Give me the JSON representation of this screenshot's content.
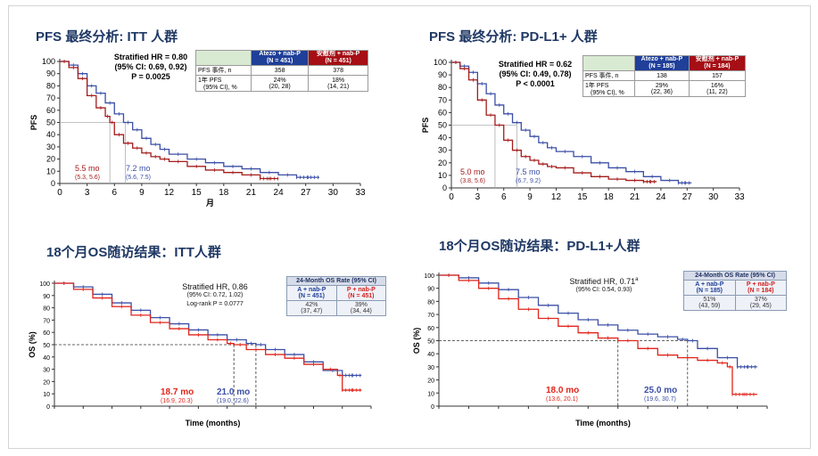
{
  "colors": {
    "blue": "#3b4fa6",
    "red": "#a51c1c",
    "red_bright": "#e1251b",
    "title": "#1f3864"
  },
  "panels": {
    "pfs_itt": {
      "title": "PFS 最终分析: ITT 人群",
      "stat": {
        "hr": "Stratified HR = 0.80",
        "ci": "(95% CI: 0.69, 0.92)",
        "p": "P = 0.0025"
      },
      "table": {
        "col_a": "Atezo + nab-P",
        "col_a_n": "(N = 451)",
        "col_p": "安慰剂 + nab-P",
        "col_p_n": "(N = 451)",
        "row1_label": "PFS 事件, n",
        "row1_a": "358",
        "row1_p": "378",
        "row2_label": "1年 PFS",
        "row2_label_b": "(95% CI), %",
        "row2_a": "24%",
        "row2_a_ci": "(20, 28)",
        "row2_p": "18%",
        "row2_p_ci": "(14, 21)"
      },
      "median_p": "5.5 mo",
      "median_p_ci": "(5.3, 5.6)",
      "median_a": "7.2 mo",
      "median_a_ci": "(5.6, 7.5)"
    },
    "pfs_pdl1": {
      "title": "PFS 最终分析: PD-L1+ 人群",
      "stat": {
        "hr": "Stratified HR = 0.62",
        "ci": "(95% CI: 0.49, 0.78)",
        "p": "P < 0.0001"
      },
      "table": {
        "col_a": "Atezo + nab-P",
        "col_a_n": "(N = 185)",
        "col_p": "安慰剂 + nab-P",
        "col_p_n": "(N = 184)",
        "row1_label": "PFS 事件, n",
        "row1_a": "138",
        "row1_p": "157",
        "row2_label": "1年 PFS",
        "row2_label_b": "(95% CI), %",
        "row2_a": "29%",
        "row2_a_ci": "(22, 36)",
        "row2_p": "16%",
        "row2_p_ci": "(11, 22)"
      },
      "median_p": "5.0 mo",
      "median_p_ci": "(3.8, 5.6)",
      "median_a": "7.5 mo",
      "median_a_ci": "(6.7, 9.2)"
    },
    "os_itt": {
      "title": "18个月OS随访结果：ITT人群",
      "stat": {
        "hr": "Stratified HR, 0.86",
        "ci": "(95% CI: 0.72, 1.02)",
        "p": "Log-rank P = 0.0777"
      },
      "table": {
        "caption": "24-Month OS Rate (95% CI)",
        "col_a": "A + nab-P",
        "col_a_n": "(N = 451)",
        "col_p": "P + nab-P",
        "col_p_n": "(N = 451)",
        "a": "42%",
        "a_ci": "(37, 47)",
        "p": "39%",
        "p_ci": "(34, 44)"
      },
      "median_p": "18.7 mo",
      "median_p_ci": "(16.9, 20.3)",
      "median_a": "21.0 mo",
      "median_a_ci": "(19.0, 22.6)"
    },
    "os_pdl1": {
      "title": "18个月OS随访结果：PD-L1+人群",
      "stat": {
        "hr": "Stratified HR, 0.71",
        "hr_sup": "a",
        "ci": "(95% CI: 0.54, 0.93)"
      },
      "table": {
        "caption": "24-Month OS Rate (95% CI)",
        "col_a": "A + nab-P",
        "col_a_n": "(N = 185)",
        "col_p": "P + nab-P",
        "col_p_n": "(N = 184)",
        "a": "51%",
        "a_ci": "(43, 59)",
        "p": "37%",
        "p_ci": "(29, 45)"
      },
      "median_p": "18.0 mo",
      "median_p_ci": "(13.6, 20.1)",
      "median_a": "25.0 mo",
      "median_a_ci": "(19.6, 30.7)"
    }
  },
  "chart_data": [
    {
      "id": "pfs_itt",
      "type": "line",
      "title": "PFS 最终分析: ITT 人群",
      "xlabel": "月",
      "ylabel": "PFS",
      "xlim": [
        0,
        33
      ],
      "ylim": [
        0,
        100
      ],
      "xticks": [
        0,
        3,
        6,
        9,
        12,
        15,
        18,
        21,
        24,
        27,
        30,
        33
      ],
      "yticks": [
        0,
        10,
        20,
        30,
        40,
        50,
        60,
        70,
        80,
        90,
        100
      ],
      "medians": [
        5.5,
        7.2
      ],
      "series": [
        {
          "name": "Atezo + nab-P",
          "color": "#3b4fa6",
          "x": [
            0,
            1,
            2,
            3,
            4,
            5,
            6,
            7,
            8,
            9,
            10,
            11,
            12,
            14,
            16,
            18,
            20,
            22,
            24,
            26,
            28.5
          ],
          "y": [
            100,
            97,
            90,
            80,
            74,
            66,
            57,
            50,
            44,
            37,
            32,
            28,
            24,
            20,
            17,
            14,
            12,
            9,
            7,
            5,
            5
          ]
        },
        {
          "name": "安慰剂 + nab-P",
          "color": "#a51c1c",
          "x": [
            0,
            1,
            2,
            3,
            4,
            5,
            5.5,
            6,
            7,
            8,
            9,
            10,
            11,
            12,
            14,
            16,
            18,
            20,
            22,
            24
          ],
          "y": [
            100,
            95,
            86,
            72,
            62,
            55,
            50,
            40,
            33,
            29,
            25,
            22,
            20,
            18,
            14,
            11,
            9,
            7,
            4,
            4
          ]
        }
      ]
    },
    {
      "id": "pfs_pdl1",
      "type": "line",
      "title": "PFS 最终分析: PD-L1+ 人群",
      "xlabel": "",
      "ylabel": "PFS",
      "xlim": [
        0,
        33
      ],
      "ylim": [
        0,
        100
      ],
      "xticks": [
        0,
        3,
        6,
        9,
        12,
        15,
        18,
        21,
        24,
        27,
        30,
        33
      ],
      "yticks": [
        0,
        10,
        20,
        30,
        40,
        50,
        60,
        70,
        80,
        90,
        100
      ],
      "medians": [
        5.0,
        7.5
      ],
      "series": [
        {
          "name": "Atezo + nab-P",
          "color": "#3b4fa6",
          "x": [
            0,
            1,
            2,
            3,
            4,
            5,
            6,
            7,
            8,
            9,
            10,
            11,
            12,
            14,
            16,
            18,
            20,
            22,
            24,
            26,
            27.5
          ],
          "y": [
            100,
            97,
            92,
            83,
            75,
            66,
            59,
            52,
            46,
            41,
            36,
            32,
            29,
            25,
            20,
            16,
            13,
            9,
            6,
            4,
            4
          ]
        },
        {
          "name": "安慰剂 + nab-P",
          "color": "#a51c1c",
          "x": [
            0,
            1,
            2,
            3,
            4,
            5,
            6,
            7,
            8,
            9,
            10,
            11,
            12,
            14,
            16,
            18,
            20,
            22,
            23.5
          ],
          "y": [
            100,
            95,
            86,
            70,
            58,
            50,
            38,
            30,
            25,
            22,
            19,
            17,
            16,
            12,
            9,
            7,
            6,
            5,
            5
          ]
        }
      ]
    },
    {
      "id": "os_itt",
      "type": "line",
      "title": "18个月OS随访结果：ITT人群",
      "xlabel": "Time (months)",
      "ylabel": "OS (%)",
      "xlim": [
        0,
        33
      ],
      "ylim": [
        0,
        100
      ],
      "yticks": [
        0,
        10,
        20,
        30,
        40,
        50,
        60,
        70,
        80,
        90,
        100
      ],
      "medians": [
        18.7,
        21.0
      ],
      "ref_y": 50,
      "series": [
        {
          "name": "A + nab-P",
          "color": "#3b4fa6",
          "x": [
            0,
            2,
            4,
            6,
            8,
            10,
            12,
            14,
            16,
            18,
            20,
            21,
            22,
            24,
            26,
            28,
            30,
            32
          ],
          "y": [
            100,
            97,
            91,
            84,
            78,
            72,
            67,
            62,
            58,
            54,
            51,
            50,
            46,
            42,
            36,
            29,
            25,
            25
          ]
        },
        {
          "name": "P + nab-P",
          "color": "#e1251b",
          "x": [
            0,
            2,
            4,
            6,
            8,
            10,
            12,
            14,
            16,
            18,
            18.7,
            20,
            22,
            24,
            26,
            28,
            29.5,
            30,
            32
          ],
          "y": [
            100,
            95,
            88,
            81,
            74,
            68,
            63,
            58,
            54,
            51,
            50,
            46,
            42,
            39,
            34,
            30,
            25,
            13,
            13
          ]
        }
      ]
    },
    {
      "id": "os_pdl1",
      "type": "line",
      "title": "18个月OS随访结果：PD-L1+人群",
      "xlabel": "Time (months)",
      "ylabel": "OS (%)",
      "xlim": [
        0,
        33
      ],
      "ylim": [
        0,
        100
      ],
      "yticks": [
        0,
        10,
        20,
        30,
        40,
        50,
        60,
        70,
        80,
        90,
        100
      ],
      "medians": [
        18.0,
        25.0
      ],
      "ref_y": 50,
      "series": [
        {
          "name": "A + nab-P",
          "color": "#3b4fa6",
          "x": [
            0,
            2,
            4,
            6,
            8,
            10,
            12,
            14,
            16,
            18,
            20,
            22,
            24,
            25,
            26,
            28,
            30,
            32
          ],
          "y": [
            100,
            98,
            94,
            89,
            83,
            77,
            71,
            66,
            62,
            58,
            55,
            53,
            51,
            50,
            44,
            37,
            30,
            30
          ]
        },
        {
          "name": "P + nab-P",
          "color": "#e1251b",
          "x": [
            0,
            2,
            4,
            6,
            8,
            10,
            12,
            14,
            16,
            18,
            20,
            22,
            24,
            26,
            28,
            29,
            29.5,
            32
          ],
          "y": [
            100,
            96,
            90,
            82,
            74,
            67,
            61,
            56,
            52,
            50,
            44,
            39,
            37,
            35,
            33,
            30,
            9,
            9
          ]
        }
      ]
    }
  ]
}
